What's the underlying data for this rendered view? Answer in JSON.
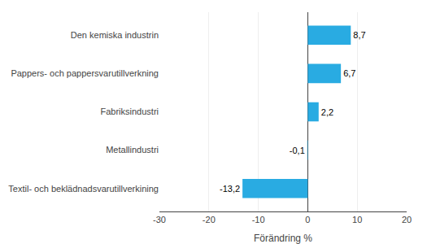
{
  "chart_data": {
    "type": "bar",
    "orientation": "horizontal",
    "categories": [
      "Textil- och beklädnadsvarutillverkining",
      "Metallindustri",
      "Fabriksindustri",
      "Pappers- och pappersvarutillverkning",
      "Den kemiska industrin"
    ],
    "values": [
      -13.2,
      -0.1,
      2.2,
      6.7,
      8.7
    ],
    "value_labels": [
      "-13,2",
      "-0,1",
      "2,2",
      "6,7",
      "8,7"
    ],
    "data_labels": true,
    "color": "#29abe2",
    "xlabel": "Förändring %",
    "xlim": [
      -30,
      20
    ],
    "xticks": [
      -30,
      -20,
      -10,
      0,
      10,
      20
    ],
    "grid": true
  }
}
